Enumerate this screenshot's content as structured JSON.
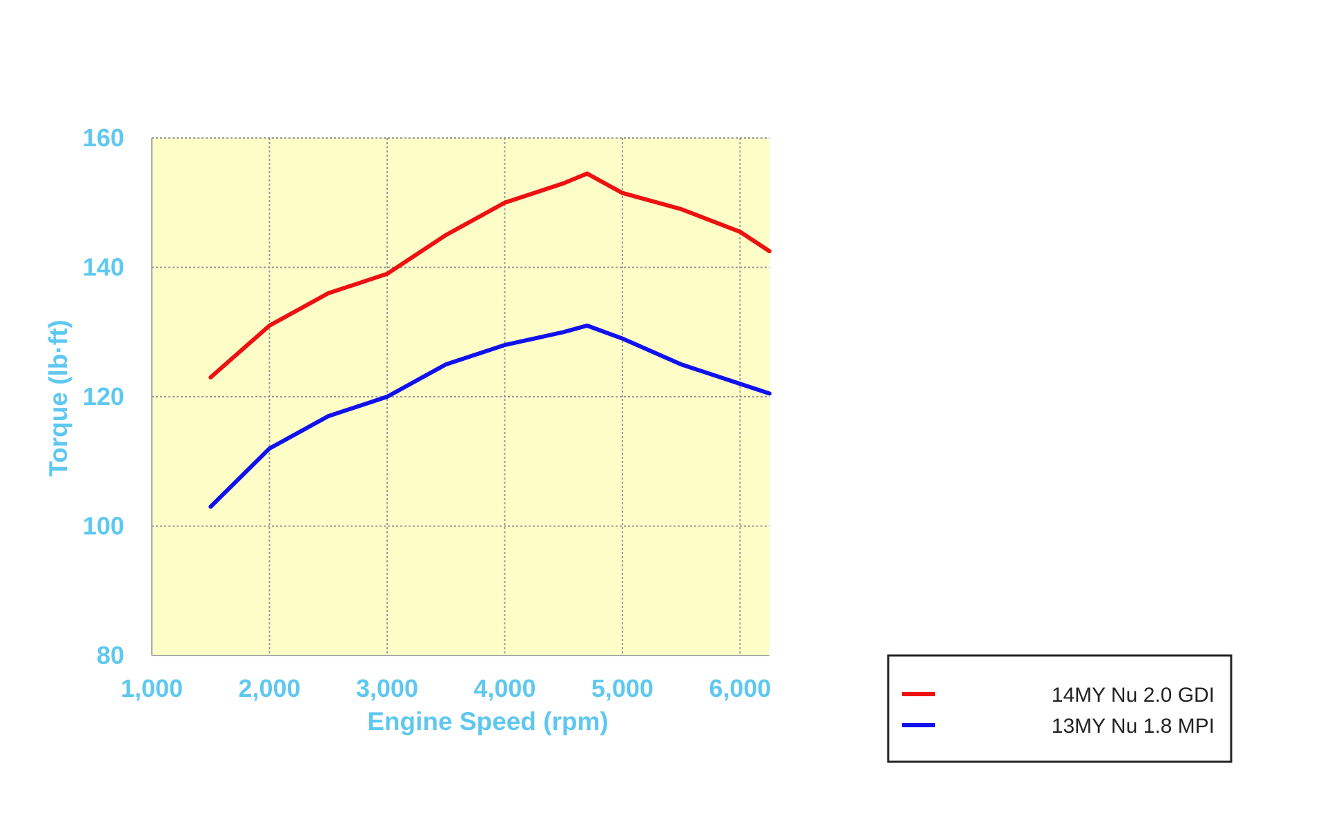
{
  "chart_data": {
    "type": "line",
    "title": "",
    "xlabel": "Engine Speed (rpm)",
    "ylabel": "Torque (lb·ft)",
    "xlim": [
      1000,
      6250
    ],
    "ylim": [
      80,
      160
    ],
    "x_ticks": [
      1000,
      2000,
      3000,
      4000,
      5000,
      6000
    ],
    "x_tick_labels": [
      "1,000",
      "2,000",
      "3,000",
      "4,000",
      "5,000",
      "6,000"
    ],
    "y_ticks": [
      80,
      100,
      120,
      140,
      160
    ],
    "y_tick_labels": [
      "80",
      "100",
      "120",
      "140",
      "160"
    ],
    "grid": true,
    "legend_position": "bottom-right, outside plot",
    "colors": {
      "plot_background": "#fdfdc8",
      "axis_text": "#5fc8f0",
      "grid": "#999999"
    },
    "series": [
      {
        "name": "14MY Nu 2.0 GDI",
        "color": "#ee1111",
        "x": [
          1500,
          2000,
          2500,
          3000,
          3500,
          4000,
          4500,
          4700,
          5000,
          5500,
          6000,
          6250
        ],
        "y": [
          123,
          131,
          136,
          139,
          145,
          150,
          153,
          154.5,
          151.5,
          149,
          145.5,
          142.5
        ]
      },
      {
        "name": "13MY Nu 1.8 MPI",
        "color": "#1111ee",
        "x": [
          1500,
          2000,
          2500,
          3000,
          3500,
          4000,
          4500,
          4700,
          5000,
          5500,
          6000,
          6250
        ],
        "y": [
          103,
          112,
          117,
          120,
          125,
          128,
          130,
          131,
          129,
          125,
          122,
          120.5
        ]
      }
    ]
  }
}
